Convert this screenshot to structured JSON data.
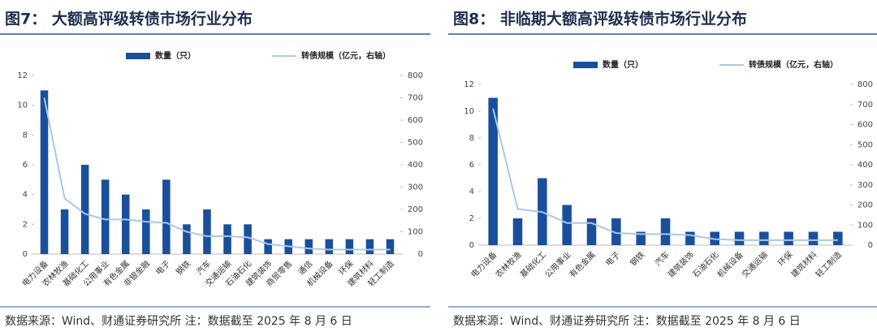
{
  "chart_data": [
    {
      "type": "bar",
      "title": "图7：  大额高评级转债市场行业分布",
      "source": "数据来源：Wind、财通证券研究所 注：数据截至 2025 年 8 月 6 日",
      "categories": [
        "电力设备",
        "农林牧渔",
        "基础化工",
        "公用事业",
        "有色金属",
        "非银金融",
        "电子",
        "钢铁",
        "汽车",
        "交通运输",
        "石油石化",
        "建筑装饰",
        "商贸零售",
        "通信",
        "机械设备",
        "环保",
        "建筑材料",
        "轻工制造"
      ],
      "series": [
        {
          "name": "数量（只）",
          "type": "bar",
          "color": "#1a4f9c",
          "values": [
            11,
            3,
            6,
            5,
            4,
            3,
            5,
            2,
            3,
            2,
            2,
            1,
            1,
            1,
            1,
            1,
            1,
            1
          ]
        },
        {
          "name": "转债规模（亿元，右轴）",
          "type": "line",
          "axis": "y2",
          "color": "#a9c8e8",
          "values": [
            700,
            250,
            180,
            155,
            155,
            145,
            140,
            100,
            80,
            80,
            75,
            45,
            35,
            25,
            20,
            20,
            20,
            20
          ]
        }
      ],
      "ylim": [
        0,
        12
      ],
      "yticks": [
        0,
        2,
        4,
        6,
        8,
        10,
        12
      ],
      "y2lim": [
        0,
        800
      ],
      "y2ticks": [
        0,
        100,
        200,
        300,
        400,
        500,
        600,
        700,
        800
      ]
    },
    {
      "type": "bar",
      "title": "图8：  非临期大额高评级转债市场行业分布",
      "source": "数据来源：Wind、财通证券研究所 注：数据截至 2025 年 8 月 6 日",
      "categories": [
        "电力设备",
        "农林牧渔",
        "基础化工",
        "公用事业",
        "有色金属",
        "电子",
        "钢铁",
        "汽车",
        "建筑装饰",
        "石油石化",
        "机械设备",
        "交通运输",
        "环保",
        "建筑材料",
        "轻工制造"
      ],
      "series": [
        {
          "name": "数量（只）",
          "type": "bar",
          "color": "#1a4f9c",
          "values": [
            11,
            2,
            5,
            3,
            2,
            2,
            1,
            2,
            1,
            1,
            1,
            1,
            1,
            1,
            1
          ]
        },
        {
          "name": "转债规模（亿元，右轴）",
          "type": "line",
          "axis": "y2",
          "color": "#a9c8e8",
          "values": [
            680,
            180,
            165,
            110,
            110,
            60,
            55,
            55,
            50,
            30,
            25,
            25,
            25,
            25,
            25
          ]
        }
      ],
      "ylim": [
        0,
        12
      ],
      "yticks": [
        0,
        2,
        4,
        6,
        8,
        10,
        12
      ],
      "y2lim": [
        0,
        800
      ],
      "y2ticks": [
        0,
        100,
        200,
        300,
        400,
        500,
        600,
        700,
        800
      ]
    }
  ]
}
